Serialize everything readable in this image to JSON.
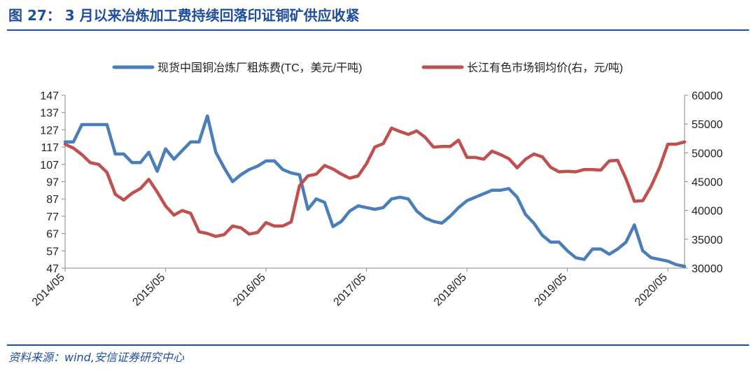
{
  "figure": {
    "label": "图 27：",
    "title": "3 月以来冶炼加工费持续回落印证铜矿供应收紧",
    "source": "资料来源：wind,安信证券研究中心"
  },
  "chart_data": {
    "type": "line",
    "title": "3 月以来冶炼加工费持续回落印证铜矿供应收紧",
    "xlabel": "",
    "x_ticks": [
      "2014/05",
      "2015/05",
      "2016/05",
      "2017/05",
      "2018/05",
      "2019/05",
      "2020/05"
    ],
    "x_start": "2014-05",
    "y_left": {
      "min": 47,
      "max": 147,
      "ticks": [
        47,
        57,
        67,
        77,
        87,
        97,
        107,
        117,
        127,
        137,
        147
      ]
    },
    "y_right": {
      "min": 30000,
      "max": 60000,
      "ticks": [
        30000,
        35000,
        40000,
        45000,
        50000,
        55000,
        60000
      ]
    },
    "grid": false,
    "legend_position": "top",
    "series": [
      {
        "name": "现货中国铜冶炼厂粗炼费(TC，美元/干吨)",
        "axis": "left",
        "color": "#4a7ebb",
        "points": [
          [
            0,
            120
          ],
          [
            1,
            120
          ],
          [
            2,
            130
          ],
          [
            3,
            130
          ],
          [
            4,
            130
          ],
          [
            5,
            130
          ],
          [
            6,
            113
          ],
          [
            7,
            113
          ],
          [
            8,
            108
          ],
          [
            9,
            108
          ],
          [
            10,
            114
          ],
          [
            11,
            103
          ],
          [
            12,
            116
          ],
          [
            13,
            110
          ],
          [
            14,
            115
          ],
          [
            15,
            120
          ],
          [
            16,
            120
          ],
          [
            17,
            135
          ],
          [
            18,
            114
          ],
          [
            19,
            105
          ],
          [
            20,
            97
          ],
          [
            21,
            101
          ],
          [
            22,
            104
          ],
          [
            23,
            106
          ],
          [
            24,
            109
          ],
          [
            25,
            109
          ],
          [
            26,
            104
          ],
          [
            27,
            102
          ],
          [
            28,
            101
          ],
          [
            29,
            81
          ],
          [
            30,
            87
          ],
          [
            31,
            85
          ],
          [
            32,
            71
          ],
          [
            33,
            74
          ],
          [
            34,
            80
          ],
          [
            35,
            83
          ],
          [
            36,
            82
          ],
          [
            37,
            81
          ],
          [
            38,
            82
          ],
          [
            39,
            87
          ],
          [
            40,
            88
          ],
          [
            41,
            87
          ],
          [
            42,
            80
          ],
          [
            43,
            76
          ],
          [
            44,
            74
          ],
          [
            45,
            73
          ],
          [
            46,
            77
          ],
          [
            47,
            82
          ],
          [
            48,
            86
          ],
          [
            49,
            88
          ],
          [
            50,
            90
          ],
          [
            51,
            92
          ],
          [
            52,
            92
          ],
          [
            53,
            93
          ],
          [
            54,
            88
          ],
          [
            55,
            78
          ],
          [
            56,
            73
          ],
          [
            57,
            66
          ],
          [
            58,
            62
          ],
          [
            59,
            62
          ],
          [
            60,
            57
          ],
          [
            61,
            53
          ],
          [
            62,
            52
          ],
          [
            63,
            58
          ],
          [
            64,
            58
          ],
          [
            65,
            55
          ],
          [
            66,
            58
          ],
          [
            67,
            62
          ],
          [
            68,
            72
          ],
          [
            69,
            57
          ],
          [
            70,
            53
          ],
          [
            71,
            52
          ],
          [
            72,
            51
          ],
          [
            73,
            49
          ],
          [
            74,
            48
          ]
        ]
      },
      {
        "name": "长江有色市场铜均价(右，元/吨)",
        "axis": "right",
        "color": "#c0504d",
        "points": [
          [
            0,
            51500
          ],
          [
            1,
            50800
          ],
          [
            2,
            49700
          ],
          [
            3,
            48300
          ],
          [
            4,
            48000
          ],
          [
            5,
            46600
          ],
          [
            6,
            42800
          ],
          [
            7,
            41800
          ],
          [
            8,
            43000
          ],
          [
            9,
            43800
          ],
          [
            10,
            45400
          ],
          [
            11,
            43200
          ],
          [
            12,
            40800
          ],
          [
            13,
            39200
          ],
          [
            14,
            40000
          ],
          [
            15,
            39500
          ],
          [
            16,
            36300
          ],
          [
            17,
            36000
          ],
          [
            18,
            35500
          ],
          [
            19,
            35800
          ],
          [
            20,
            37300
          ],
          [
            21,
            37000
          ],
          [
            22,
            35900
          ],
          [
            23,
            36200
          ],
          [
            24,
            37900
          ],
          [
            25,
            37300
          ],
          [
            26,
            37300
          ],
          [
            27,
            38000
          ],
          [
            28,
            44300
          ],
          [
            29,
            46000
          ],
          [
            30,
            46300
          ],
          [
            31,
            47800
          ],
          [
            32,
            47200
          ],
          [
            33,
            46300
          ],
          [
            34,
            45600
          ],
          [
            35,
            46000
          ],
          [
            36,
            48100
          ],
          [
            37,
            51000
          ],
          [
            38,
            51600
          ],
          [
            39,
            54300
          ],
          [
            40,
            53700
          ],
          [
            41,
            53200
          ],
          [
            42,
            53800
          ],
          [
            43,
            52700
          ],
          [
            44,
            51000
          ],
          [
            45,
            51100
          ],
          [
            46,
            51100
          ],
          [
            47,
            52200
          ],
          [
            48,
            49200
          ],
          [
            49,
            49200
          ],
          [
            50,
            48900
          ],
          [
            51,
            50300
          ],
          [
            52,
            49700
          ],
          [
            53,
            49000
          ],
          [
            54,
            47400
          ],
          [
            55,
            48900
          ],
          [
            56,
            49800
          ],
          [
            57,
            49300
          ],
          [
            58,
            47500
          ],
          [
            59,
            46700
          ],
          [
            60,
            46800
          ],
          [
            61,
            46700
          ],
          [
            62,
            47100
          ],
          [
            63,
            47100
          ],
          [
            64,
            47000
          ],
          [
            65,
            48600
          ],
          [
            66,
            48700
          ],
          [
            67,
            45500
          ],
          [
            68,
            41600
          ],
          [
            69,
            41700
          ],
          [
            70,
            44200
          ],
          [
            71,
            47400
          ],
          [
            72,
            51500
          ],
          [
            73,
            51500
          ],
          [
            74,
            51900
          ]
        ]
      }
    ]
  }
}
